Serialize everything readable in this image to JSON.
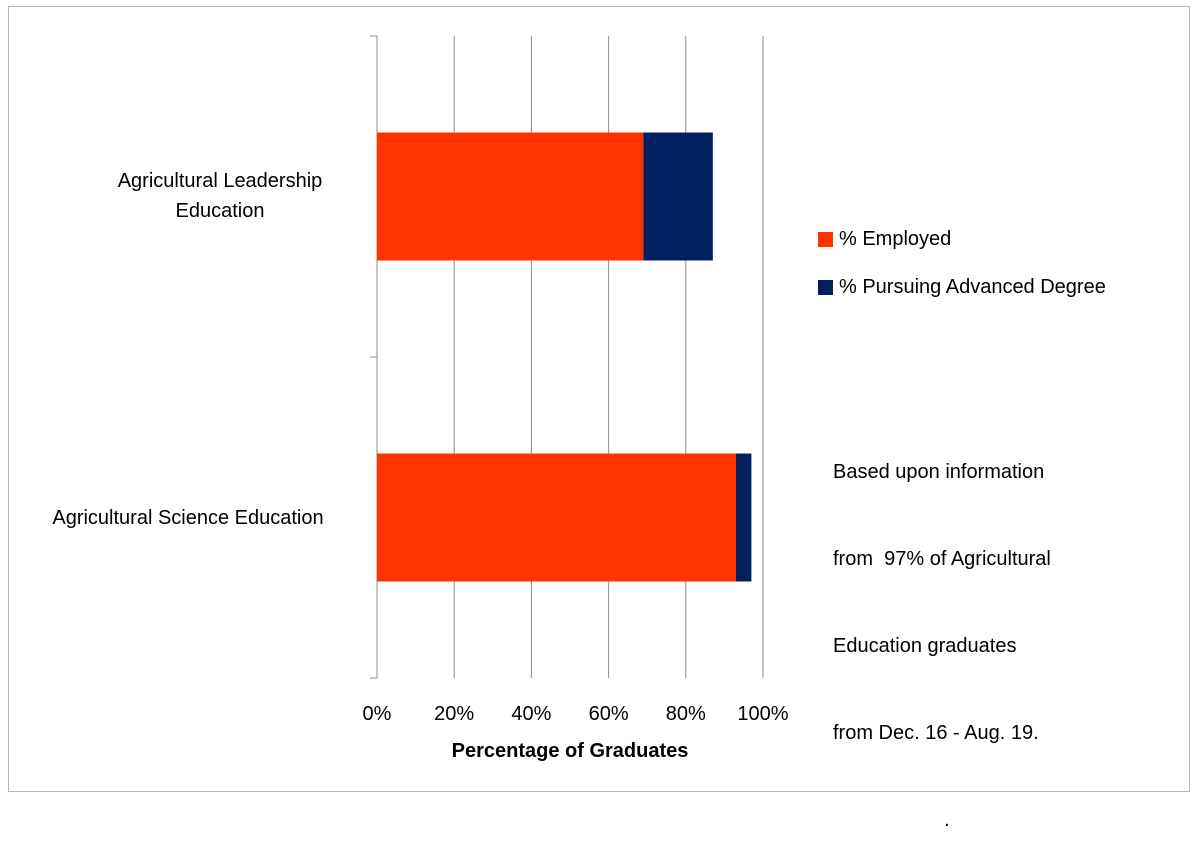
{
  "chart_data": {
    "type": "bar",
    "orientation": "horizontal",
    "stacked": true,
    "categories": [
      "Agricultural Leadership Education",
      "Agricultural Science Education"
    ],
    "category_display": [
      [
        "Agricultural Leadership",
        "Education"
      ],
      [
        "Agricultural Science Education"
      ]
    ],
    "series": [
      {
        "name": "% Employed",
        "color": "#ff3300",
        "values": [
          69,
          93
        ]
      },
      {
        "name": "% Pursuing Advanced Degree",
        "color": "#002060",
        "values": [
          18,
          4
        ]
      }
    ],
    "xlabel": "Percentage of Graduates",
    "ylabel": "",
    "xlim": [
      0,
      100
    ],
    "xticks": [
      "0%",
      "20%",
      "40%",
      "60%",
      "80%",
      "100%"
    ],
    "grid": true,
    "legend_position": "right"
  },
  "note": {
    "lines": [
      "Based upon information",
      "from  97% of Agricultural",
      "Education graduates",
      "from Dec. 16 - Aug. 19.",
      "                    ."
    ]
  }
}
